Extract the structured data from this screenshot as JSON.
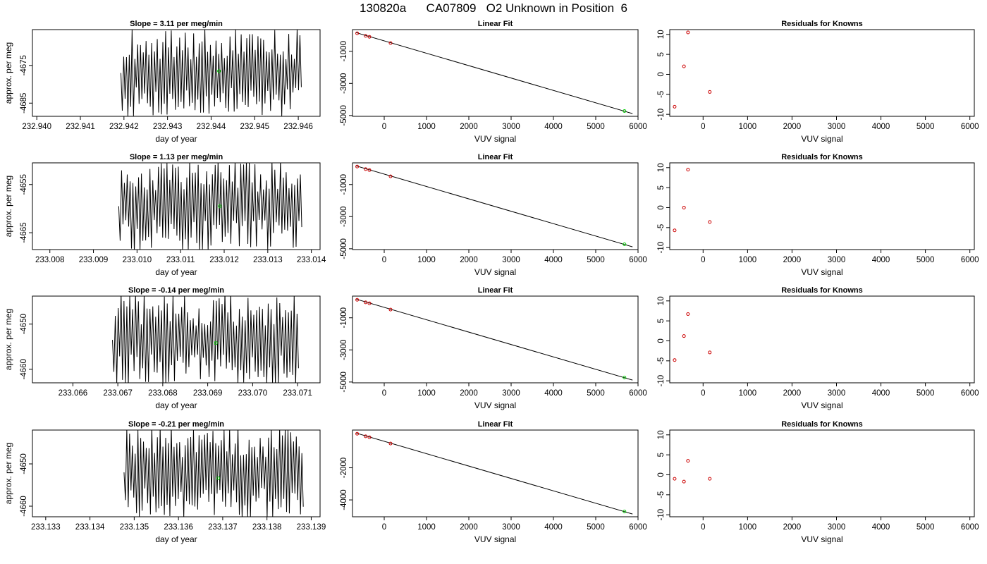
{
  "page": {
    "title": "130820a      CA07809   O2 Unknown in Position  6"
  },
  "chart_data": [
    {
      "type": "line",
      "panel": "timeseries",
      "title": "Slope =  3.11  per meg/min",
      "xlabel": "day of year",
      "ylabel": "approx. per meg",
      "xlim": [
        232.9399,
        232.9465
      ],
      "ylim": [
        -4688.5,
        -4665.5
      ],
      "xticks": [
        "232.940",
        "232.941",
        "232.942",
        "232.943",
        "232.944",
        "232.945",
        "232.946"
      ],
      "xtick_values": [
        232.94,
        232.941,
        232.942,
        232.943,
        232.944,
        232.945,
        232.946
      ],
      "yticks": [
        "-4685",
        "-4675"
      ],
      "ytick_values": [
        -4685,
        -4675
      ],
      "signal": {
        "x_start": 232.94193,
        "x_end": 232.94607,
        "points": 130,
        "y_min": -4689,
        "y_max": -4665,
        "line_color": "#000000"
      },
      "marker": {
        "x": 232.94418,
        "y": -4676.5,
        "color": "#00cc00"
      }
    },
    {
      "type": "scatter",
      "panel": "linear_fit",
      "title": "Linear Fit",
      "xlabel": "VUV signal",
      "ylabel": "",
      "xlim": [
        -750,
        6000
      ],
      "ylim": [
        -5050,
        350
      ],
      "xticks": [
        "0",
        "1000",
        "2000",
        "3000",
        "4000",
        "5000",
        "6000"
      ],
      "xtick_values": [
        0,
        1000,
        2000,
        3000,
        4000,
        5000,
        6000
      ],
      "yticks": [
        "-1000",
        "-3000",
        "-5000"
      ],
      "ytick_values": [
        -1000,
        -3000,
        -5000
      ],
      "fit_line": {
        "x": [
          -660,
          5870
        ],
        "y": [
          160,
          -4880
        ]
      },
      "points_red": {
        "x": [
          -640,
          -440,
          -350,
          150
        ],
        "y": [
          120,
          -40,
          -100,
          -490
        ]
      },
      "points_green": {
        "x": [
          5680
        ],
        "y": [
          -4720
        ]
      },
      "colors": {
        "line": "#000000",
        "known": "#cc0000",
        "unknown": "#00cc00"
      }
    },
    {
      "type": "scatter",
      "panel": "residuals",
      "title": "Residuals for Knowns",
      "xlabel": "VUV signal",
      "ylabel": "",
      "xlim": [
        -750,
        6100
      ],
      "ylim": [
        -10.5,
        11.2
      ],
      "xticks": [
        "0",
        "1000",
        "2000",
        "3000",
        "4000",
        "5000",
        "6000"
      ],
      "xtick_values": [
        0,
        1000,
        2000,
        3000,
        4000,
        5000,
        6000
      ],
      "yticks": [
        "-10",
        "-5",
        "0",
        "5",
        "10"
      ],
      "ytick_values": [
        -10,
        -5,
        0,
        5,
        10
      ],
      "points": {
        "x": [
          -640,
          -430,
          -340,
          150
        ],
        "y": [
          -8.1,
          2.0,
          10.5,
          -4.4
        ]
      },
      "colors": {
        "points": "#cc0000"
      }
    },
    {
      "type": "line",
      "panel": "timeseries",
      "title": "Slope =  1.13  per meg/min",
      "xlabel": "day of year",
      "ylabel": "approx. per meg",
      "xlim": [
        233.0076,
        233.0142
      ],
      "ylim": [
        -4668.5,
        -4650.5
      ],
      "xticks": [
        "233.008",
        "233.009",
        "233.010",
        "233.011",
        "233.012",
        "233.013",
        "233.014"
      ],
      "xtick_values": [
        233.008,
        233.009,
        233.01,
        233.011,
        233.012,
        233.013,
        233.014
      ],
      "yticks": [
        "-4655",
        "-4665"
      ],
      "ytick_values": [
        -4655,
        -4665
      ],
      "signal": {
        "x_start": 233.00958,
        "x_end": 233.01378,
        "points": 130,
        "y_min": -4669,
        "y_max": -4650,
        "line_color": "#000000"
      },
      "marker": {
        "x": 233.0119,
        "y": -4659.5,
        "color": "#00cc00"
      }
    },
    {
      "type": "scatter",
      "panel": "linear_fit",
      "title": "Linear Fit",
      "xlabel": "VUV signal",
      "ylabel": "",
      "xlim": [
        -750,
        6000
      ],
      "ylim": [
        -5050,
        350
      ],
      "xticks": [
        "0",
        "1000",
        "2000",
        "3000",
        "4000",
        "5000",
        "6000"
      ],
      "xtick_values": [
        0,
        1000,
        2000,
        3000,
        4000,
        5000,
        6000
      ],
      "yticks": [
        "-1000",
        "-3000",
        "-5000"
      ],
      "ytick_values": [
        -1000,
        -3000,
        -5000
      ],
      "fit_line": {
        "x": [
          -660,
          5870
        ],
        "y": [
          160,
          -4880
        ]
      },
      "points_red": {
        "x": [
          -640,
          -440,
          -350,
          150
        ],
        "y": [
          120,
          -40,
          -100,
          -490
        ]
      },
      "points_green": {
        "x": [
          5680
        ],
        "y": [
          -4720
        ]
      },
      "colors": {
        "line": "#000000",
        "known": "#cc0000",
        "unknown": "#00cc00"
      }
    },
    {
      "type": "scatter",
      "panel": "residuals",
      "title": "Residuals for Knowns",
      "xlabel": "VUV signal",
      "ylabel": "",
      "xlim": [
        -750,
        6100
      ],
      "ylim": [
        -10.5,
        11.2
      ],
      "xticks": [
        "0",
        "1000",
        "2000",
        "3000",
        "4000",
        "5000",
        "6000"
      ],
      "xtick_values": [
        0,
        1000,
        2000,
        3000,
        4000,
        5000,
        6000
      ],
      "yticks": [
        "-10",
        "-5",
        "0",
        "5",
        "10"
      ],
      "ytick_values": [
        -10,
        -5,
        0,
        5,
        10
      ],
      "points": {
        "x": [
          -640,
          -430,
          -340,
          150
        ],
        "y": [
          -5.7,
          0.0,
          9.5,
          -3.6
        ]
      },
      "colors": {
        "points": "#cc0000"
      }
    },
    {
      "type": "line",
      "panel": "timeseries",
      "title": "Slope =  -0.14  per meg/min",
      "xlabel": "day of year",
      "ylabel": "approx. per meg",
      "xlim": [
        233.0651,
        233.0715
      ],
      "ylim": [
        -4663.0,
        -4643.8
      ],
      "xticks": [
        "233.066",
        "233.067",
        "233.068",
        "233.069",
        "233.070",
        "233.071"
      ],
      "xtick_values": [
        233.066,
        233.067,
        233.068,
        233.069,
        233.07,
        233.071
      ],
      "yticks": [
        "-4650",
        "-4660"
      ],
      "ytick_values": [
        -4650,
        -4660
      ],
      "signal": {
        "x_start": 233.06688,
        "x_end": 233.07102,
        "points": 130,
        "y_min": -4664,
        "y_max": -4643,
        "line_color": "#000000"
      },
      "marker": {
        "x": 233.06918,
        "y": -4654.2,
        "color": "#00cc00"
      }
    },
    {
      "type": "scatter",
      "panel": "linear_fit",
      "title": "Linear Fit",
      "xlabel": "VUV signal",
      "ylabel": "",
      "xlim": [
        -750,
        6000
      ],
      "ylim": [
        -5050,
        350
      ],
      "xticks": [
        "0",
        "1000",
        "2000",
        "3000",
        "4000",
        "5000",
        "6000"
      ],
      "xtick_values": [
        0,
        1000,
        2000,
        3000,
        4000,
        5000,
        6000
      ],
      "yticks": [
        "-1000",
        "-3000",
        "-5000"
      ],
      "ytick_values": [
        -1000,
        -3000,
        -5000
      ],
      "fit_line": {
        "x": [
          -660,
          5870
        ],
        "y": [
          160,
          -4880
        ]
      },
      "points_red": {
        "x": [
          -640,
          -440,
          -350,
          150
        ],
        "y": [
          120,
          -40,
          -100,
          -490
        ]
      },
      "points_green": {
        "x": [
          5680
        ],
        "y": [
          -4720
        ]
      },
      "colors": {
        "line": "#000000",
        "known": "#cc0000",
        "unknown": "#00cc00"
      }
    },
    {
      "type": "scatter",
      "panel": "residuals",
      "title": "Residuals for Knowns",
      "xlabel": "VUV signal",
      "ylabel": "",
      "xlim": [
        -750,
        6100
      ],
      "ylim": [
        -10.5,
        11.2
      ],
      "xticks": [
        "0",
        "1000",
        "2000",
        "3000",
        "4000",
        "5000",
        "6000"
      ],
      "xtick_values": [
        0,
        1000,
        2000,
        3000,
        4000,
        5000,
        6000
      ],
      "yticks": [
        "-10",
        "-5",
        "0",
        "5",
        "10"
      ],
      "ytick_values": [
        -10,
        -5,
        0,
        5,
        10
      ],
      "points": {
        "x": [
          -640,
          -430,
          -340,
          150
        ],
        "y": [
          -4.8,
          1.2,
          6.7,
          -2.9
        ]
      },
      "colors": {
        "points": "#cc0000"
      }
    },
    {
      "type": "line",
      "panel": "timeseries",
      "title": "Slope =  -0.21  per meg/min",
      "xlabel": "day of year",
      "ylabel": "approx. per meg",
      "xlim": [
        233.1327,
        233.1392
      ],
      "ylim": [
        -4662.5,
        -4642.0
      ],
      "xticks": [
        "233.133",
        "233.134",
        "233.135",
        "233.136",
        "233.137",
        "233.138",
        "233.139"
      ],
      "xtick_values": [
        233.133,
        233.134,
        233.135,
        233.136,
        233.137,
        233.138,
        233.139
      ],
      "yticks": [
        "-4650",
        "-4660"
      ],
      "ytick_values": [
        -4650,
        -4660
      ],
      "signal": {
        "x_start": 233.13477,
        "x_end": 233.13882,
        "points": 130,
        "y_min": -4663,
        "y_max": -4641,
        "line_color": "#000000"
      },
      "marker": {
        "x": 233.1369,
        "y": -4653.4,
        "color": "#00cc00"
      }
    },
    {
      "type": "scatter",
      "panel": "linear_fit",
      "title": "Linear Fit",
      "xlabel": "VUV signal",
      "ylabel": "",
      "xlim": [
        -750,
        6000
      ],
      "ylim": [
        -5050,
        350
      ],
      "xticks": [
        "0",
        "1000",
        "2000",
        "3000",
        "4000",
        "5000",
        "6000"
      ],
      "xtick_values": [
        0,
        1000,
        2000,
        3000,
        4000,
        5000,
        6000
      ],
      "yticks": [
        "-2000",
        "-4000"
      ],
      "ytick_values": [
        -2000,
        -4000
      ],
      "fit_line": {
        "x": [
          -660,
          5870
        ],
        "y": [
          160,
          -4880
        ]
      },
      "points_red": {
        "x": [
          -640,
          -440,
          -350,
          150
        ],
        "y": [
          120,
          -40,
          -100,
          -490
        ]
      },
      "points_green": {
        "x": [
          5680
        ],
        "y": [
          -4720
        ]
      },
      "colors": {
        "line": "#000000",
        "known": "#cc0000",
        "unknown": "#00cc00"
      }
    },
    {
      "type": "scatter",
      "panel": "residuals",
      "title": "Residuals for Knowns",
      "xlabel": "VUV signal",
      "ylabel": "",
      "xlim": [
        -750,
        6100
      ],
      "ylim": [
        -10.5,
        11.2
      ],
      "xticks": [
        "0",
        "1000",
        "2000",
        "3000",
        "4000",
        "5000",
        "6000"
      ],
      "xtick_values": [
        0,
        1000,
        2000,
        3000,
        4000,
        5000,
        6000
      ],
      "yticks": [
        "-10",
        "-5",
        "0",
        "5",
        "10"
      ],
      "ytick_values": [
        -10,
        -5,
        0,
        5,
        10
      ],
      "points": {
        "x": [
          -640,
          -430,
          -340,
          150
        ],
        "y": [
          -1.0,
          -1.7,
          3.5,
          -1.0
        ]
      },
      "colors": {
        "points": "#cc0000"
      }
    }
  ]
}
